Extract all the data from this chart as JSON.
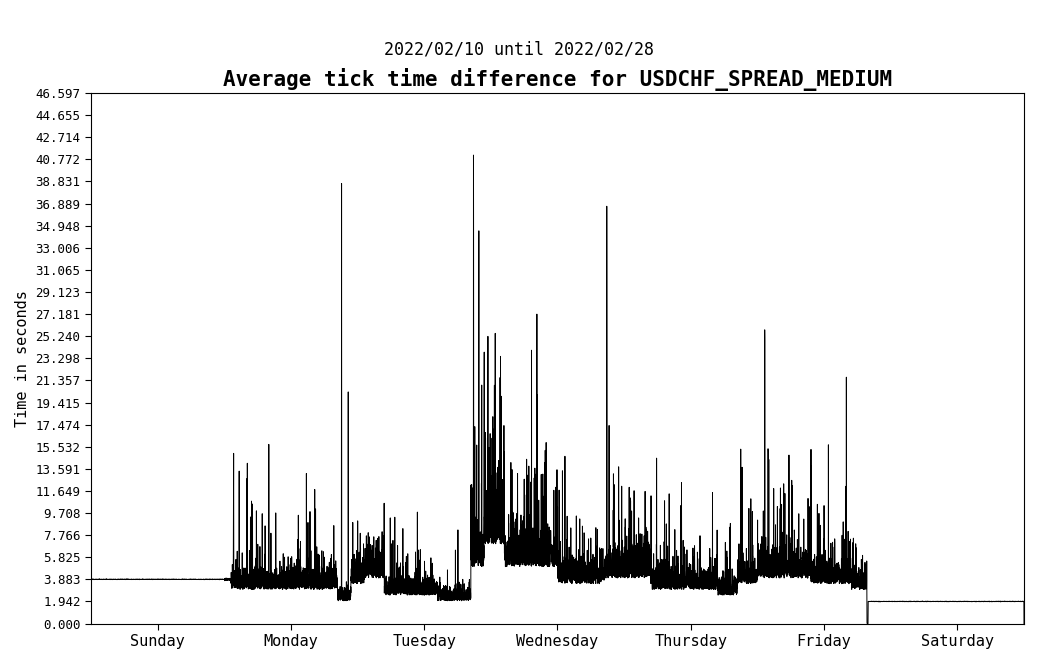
{
  "title": "Average tick time difference for USDCHF_SPREAD_MEDIUM",
  "subtitle": "2022/02/10 until 2022/02/28",
  "ylabel": "Time in seconds",
  "yticks": [
    0.0,
    1.942,
    3.883,
    5.825,
    7.766,
    9.708,
    11.649,
    13.591,
    15.532,
    17.474,
    19.415,
    21.357,
    23.298,
    25.24,
    27.181,
    29.123,
    31.065,
    33.006,
    34.948,
    36.889,
    38.831,
    40.772,
    42.714,
    44.655,
    46.597
  ],
  "xtick_labels": [
    "Sunday",
    "Monday",
    "Tuesday",
    "Wednesday",
    "Thursday",
    "Friday",
    "Saturday"
  ],
  "xtick_positions": [
    0.5,
    1.5,
    2.5,
    3.5,
    4.5,
    5.5,
    6.5
  ],
  "xlim": [
    0,
    7
  ],
  "ylim": [
    0,
    46.597
  ],
  "line_color": "#000000",
  "background_color": "#ffffff",
  "title_fontsize": 15,
  "subtitle_fontsize": 12,
  "ylabel_fontsize": 11,
  "xtick_fontsize": 11,
  "ytick_fontsize": 9,
  "line_width": 0.7
}
